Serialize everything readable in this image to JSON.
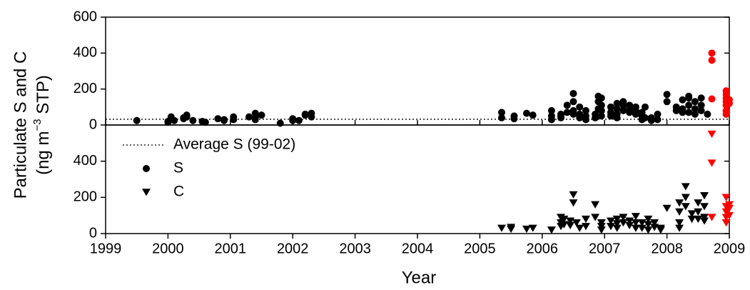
{
  "chart_data": [
    {
      "type": "scatter",
      "y_label": "Particulate S and C",
      "y_label_unit": [
        "(ng m",
        "−3",
        " STP)"
      ],
      "xlim": [
        1999,
        2009
      ],
      "ylim": [
        0,
        600
      ],
      "yticks": [
        0,
        200,
        400,
        600
      ],
      "reference_line": {
        "name": "Average S (99-02)",
        "value": 32,
        "style": "dotted",
        "color": "#000000"
      },
      "series": [
        {
          "name": "S",
          "color": "#000000",
          "marker": "circle",
          "x": [
            1999.5,
            2000.0,
            2000.0,
            2000.05,
            2000.05,
            2000.1,
            2000.25,
            2000.25,
            2000.3,
            2000.3,
            2000.4,
            2000.55,
            2000.6,
            2000.8,
            2000.9,
            2000.9,
            2001.05,
            2001.05,
            2001.3,
            2001.4,
            2001.4,
            2001.4,
            2001.5,
            2001.8,
            2002.0,
            2002.0,
            2002.1,
            2002.2,
            2002.2,
            2002.3,
            2002.3,
            2005.35,
            2005.35,
            2005.55,
            2005.55,
            2005.75,
            2005.85,
            2006.15,
            2006.15,
            2006.15,
            2006.3,
            2006.3,
            2006.3,
            2006.4,
            2006.4,
            2006.5,
            2006.5,
            2006.5,
            2006.5,
            2006.6,
            2006.6,
            2006.6,
            2006.7,
            2006.7,
            2006.7,
            2006.85,
            2006.85,
            2006.9,
            2006.9,
            2006.9,
            2006.95,
            2006.95,
            2006.95,
            2006.95,
            2007.1,
            2007.1,
            2007.1,
            2007.2,
            2007.2,
            2007.2,
            2007.2,
            2007.3,
            2007.3,
            2007.3,
            2007.4,
            2007.4,
            2007.4,
            2007.5,
            2007.5,
            2007.5,
            2007.6,
            2007.6,
            2007.6,
            2007.65,
            2007.65,
            2007.75,
            2007.75,
            2007.85,
            2007.85,
            2008.0,
            2008.0,
            2008.15,
            2008.15,
            2008.25,
            2008.25,
            2008.25,
            2008.35,
            2008.35,
            2008.35,
            2008.35,
            2008.45,
            2008.45,
            2008.45,
            2008.55,
            2008.55,
            2008.55,
            2008.65
          ],
          "values": [
            25,
            20,
            15,
            30,
            45,
            25,
            40,
            35,
            55,
            45,
            25,
            20,
            15,
            35,
            25,
            30,
            30,
            45,
            45,
            65,
            40,
            30,
            55,
            10,
            25,
            35,
            25,
            55,
            60,
            65,
            45,
            70,
            40,
            50,
            35,
            65,
            55,
            80,
            50,
            30,
            60,
            50,
            40,
            70,
            110,
            175,
            130,
            80,
            60,
            100,
            60,
            40,
            80,
            50,
            30,
            60,
            40,
            160,
            130,
            90,
            150,
            110,
            80,
            50,
            100,
            70,
            50,
            120,
            90,
            60,
            40,
            130,
            110,
            80,
            110,
            90,
            70,
            100,
            80,
            60,
            70,
            50,
            30,
            100,
            40,
            40,
            25,
            60,
            30,
            170,
            130,
            100,
            80,
            140,
            90,
            70,
            160,
            150,
            110,
            70,
            130,
            90,
            60,
            150,
            110,
            80,
            60
          ]
        },
        {
          "color": "#ff0000",
          "marker": "circle",
          "x": [
            2008.72,
            2008.72,
            2008.72,
            2008.95,
            2008.95,
            2008.95,
            2008.95,
            2008.95,
            2008.95,
            2008.95,
            2009.0,
            2009.0
          ],
          "values": [
            400,
            360,
            145,
            190,
            170,
            150,
            130,
            110,
            80,
            60,
            140,
            120
          ]
        }
      ]
    },
    {
      "type": "scatter",
      "x_label": "Year",
      "legend": "upper left",
      "xlim": [
        1999,
        2009
      ],
      "xticks": [
        1999,
        2000,
        2001,
        2002,
        2003,
        2004,
        2005,
        2006,
        2007,
        2008,
        2009
      ],
      "ylim": [
        0,
        600
      ],
      "yticks": [
        0,
        200,
        400
      ],
      "series": [
        {
          "name": "C",
          "color": "#000000",
          "marker": "triangle-down",
          "x": [
            2005.35,
            2005.5,
            2005.5,
            2005.75,
            2005.85,
            2006.15,
            2006.3,
            2006.3,
            2006.3,
            2006.35,
            2006.35,
            2006.45,
            2006.45,
            2006.5,
            2006.5,
            2006.55,
            2006.6,
            2006.7,
            2006.7,
            2006.85,
            2006.85,
            2006.95,
            2006.95,
            2006.95,
            2007.1,
            2007.1,
            2007.2,
            2007.2,
            2007.2,
            2007.3,
            2007.3,
            2007.4,
            2007.4,
            2007.5,
            2007.5,
            2007.5,
            2007.6,
            2007.6,
            2007.7,
            2007.7,
            2007.7,
            2007.8,
            2007.8,
            2007.9,
            2007.9,
            2008.0,
            2008.2,
            2008.2,
            2008.2,
            2008.2,
            2008.3,
            2008.3,
            2008.3,
            2008.4,
            2008.4,
            2008.5,
            2008.5,
            2008.5,
            2008.6,
            2008.6,
            2008.6,
            2008.6
          ],
          "values": [
            30,
            35,
            25,
            25,
            30,
            20,
            90,
            60,
            40,
            80,
            50,
            70,
            45,
            215,
            170,
            60,
            30,
            80,
            40,
            160,
            90,
            60,
            40,
            20,
            70,
            40,
            80,
            55,
            30,
            90,
            60,
            70,
            45,
            95,
            60,
            30,
            60,
            30,
            80,
            50,
            20,
            60,
            35,
            30,
            20,
            140,
            170,
            120,
            60,
            30,
            260,
            200,
            150,
            110,
            80,
            170,
            120,
            80,
            210,
            150,
            90,
            70
          ]
        },
        {
          "color": "#ff0000",
          "marker": "triangle-down",
          "x": [
            2008.72,
            2008.72,
            2008.72,
            2008.95,
            2008.95,
            2008.95,
            2008.95,
            2008.95,
            2009.0,
            2009.0,
            2009.0
          ],
          "values": [
            550,
            390,
            90,
            200,
            150,
            120,
            90,
            60,
            140,
            160,
            100
          ]
        }
      ]
    }
  ]
}
